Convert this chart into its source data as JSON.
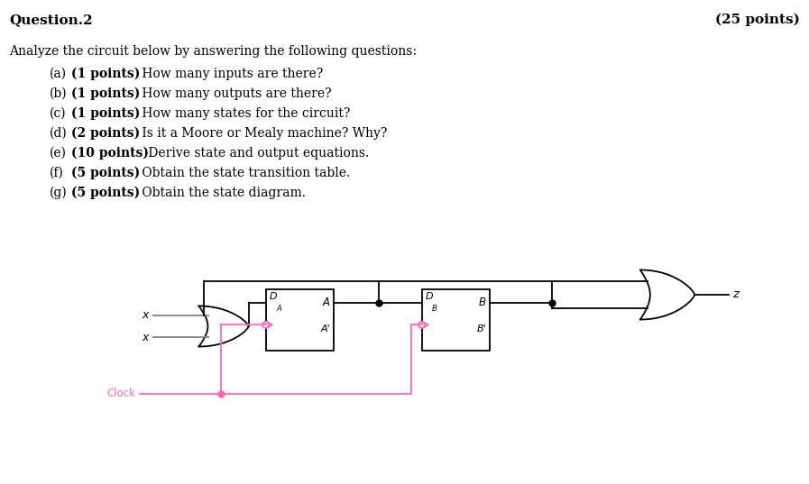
{
  "title_left": "Question.2",
  "title_right": "(25 points)",
  "intro": "Analyze the circuit below by answering the following questions:",
  "questions": [
    [
      "(a)",
      "(1 points)",
      " How many inputs are there?"
    ],
    [
      "(b)",
      "(1 points)",
      " How many outputs are there?"
    ],
    [
      "(c)",
      "(1 points)",
      " How many states for the circuit?"
    ],
    [
      "(d)",
      "(2 points)",
      " Is it a Moore or Mealy machine? Why?"
    ],
    [
      "(e)",
      "(10 points)",
      " Derive state and output equations."
    ],
    [
      "(f)",
      "(5 points)",
      " Obtain the state transition table."
    ],
    [
      "(g)",
      "(5 points)",
      " Obtain the state diagram."
    ]
  ],
  "background_color": "#ffffff",
  "text_color": "#000000",
  "clock_color": "#ff69b4",
  "wire_color": "#000000",
  "gray_color": "#808080",
  "font_size_title": 11,
  "font_size_body": 10,
  "font_size_circuit": 9
}
